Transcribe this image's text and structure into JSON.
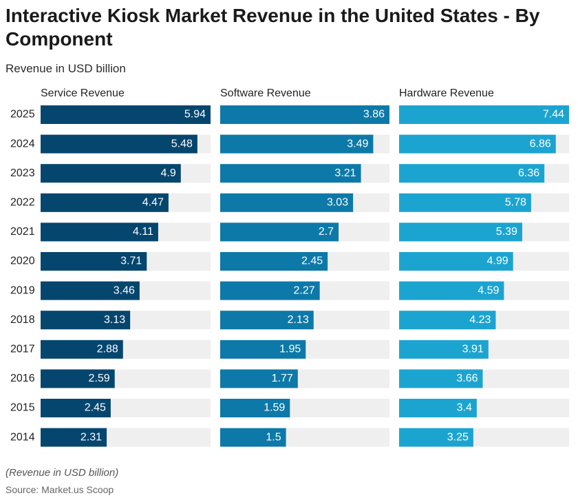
{
  "title": "Interactive Kiosk Market Revenue in the United States - By Component",
  "subtitle": "Revenue in USD billion",
  "footnote": "(Revenue in USD billion)",
  "source": "Source: Market.us Scoop",
  "chart_data": {
    "type": "bar",
    "orientation": "horizontal",
    "layout": "small-multiples",
    "categories": [
      "2025",
      "2024",
      "2023",
      "2022",
      "2021",
      "2020",
      "2019",
      "2018",
      "2017",
      "2016",
      "2015",
      "2014"
    ],
    "series": [
      {
        "name": "Service Revenue",
        "color": "#05466e",
        "xmax": 5.94,
        "values": [
          5.94,
          5.48,
          4.9,
          4.47,
          4.11,
          3.71,
          3.46,
          3.13,
          2.88,
          2.59,
          2.45,
          2.31
        ]
      },
      {
        "name": "Software Revenue",
        "color": "#0d79a8",
        "xmax": 3.86,
        "values": [
          3.86,
          3.49,
          3.21,
          3.03,
          2.7,
          2.45,
          2.27,
          2.13,
          1.95,
          1.77,
          1.59,
          1.5
        ]
      },
      {
        "name": "Hardware Revenue",
        "color": "#1ca4d1",
        "xmax": 7.44,
        "values": [
          7.44,
          6.86,
          6.36,
          5.78,
          5.39,
          4.99,
          4.59,
          4.23,
          3.91,
          3.66,
          3.4,
          3.25
        ]
      }
    ],
    "track_color": "#efefef",
    "label_color": "#ffffff",
    "grid": false,
    "legend": "none"
  }
}
